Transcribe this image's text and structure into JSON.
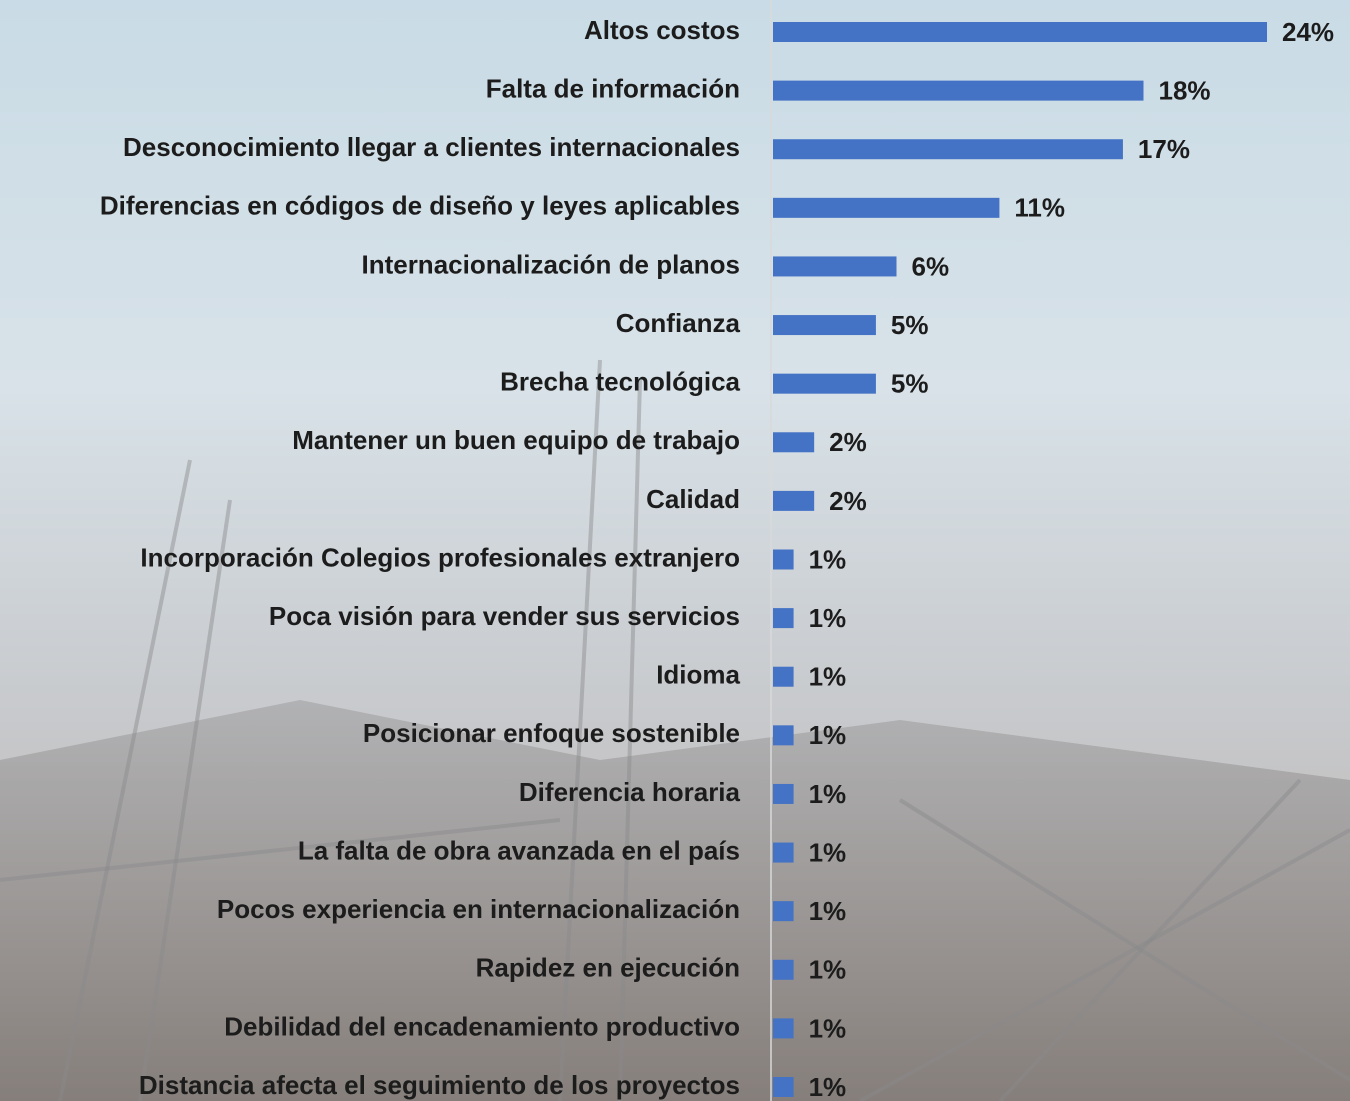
{
  "chart_data": {
    "type": "bar",
    "orientation": "horizontal",
    "color": "#4472c4",
    "categories": [
      "Altos costos",
      "Falta de información",
      "Desconocimiento llegar a clientes internacionales",
      "Diferencias en códigos de diseño y leyes aplicables",
      "Internacionalización de planos",
      "Confianza",
      "Brecha tecnológica",
      "Mantener un buen equipo de trabajo",
      "Calidad",
      "Incorporación Colegios profesionales extranjero",
      "Poca visión para vender sus servicios",
      "Idioma",
      "Posicionar enfoque sostenible",
      "Diferencia horaria",
      "La falta de obra avanzada en el país",
      "Pocos experiencia en internacionalización",
      "Rapidez en ejecución",
      "Debilidad del encadenamiento productivo",
      "Distancia afecta el seguimiento de los proyectos"
    ],
    "values": [
      24,
      18,
      17,
      11,
      6,
      5,
      5,
      2,
      2,
      1,
      1,
      1,
      1,
      1,
      1,
      1,
      1,
      1,
      1
    ],
    "value_labels": [
      "24%",
      "18%",
      "17%",
      "11%",
      "6%",
      "5%",
      "5%",
      "2%",
      "2%",
      "1%",
      "1%",
      "1%",
      "1%",
      "1%",
      "1%",
      "1%",
      "1%",
      "1%",
      "1%"
    ]
  }
}
